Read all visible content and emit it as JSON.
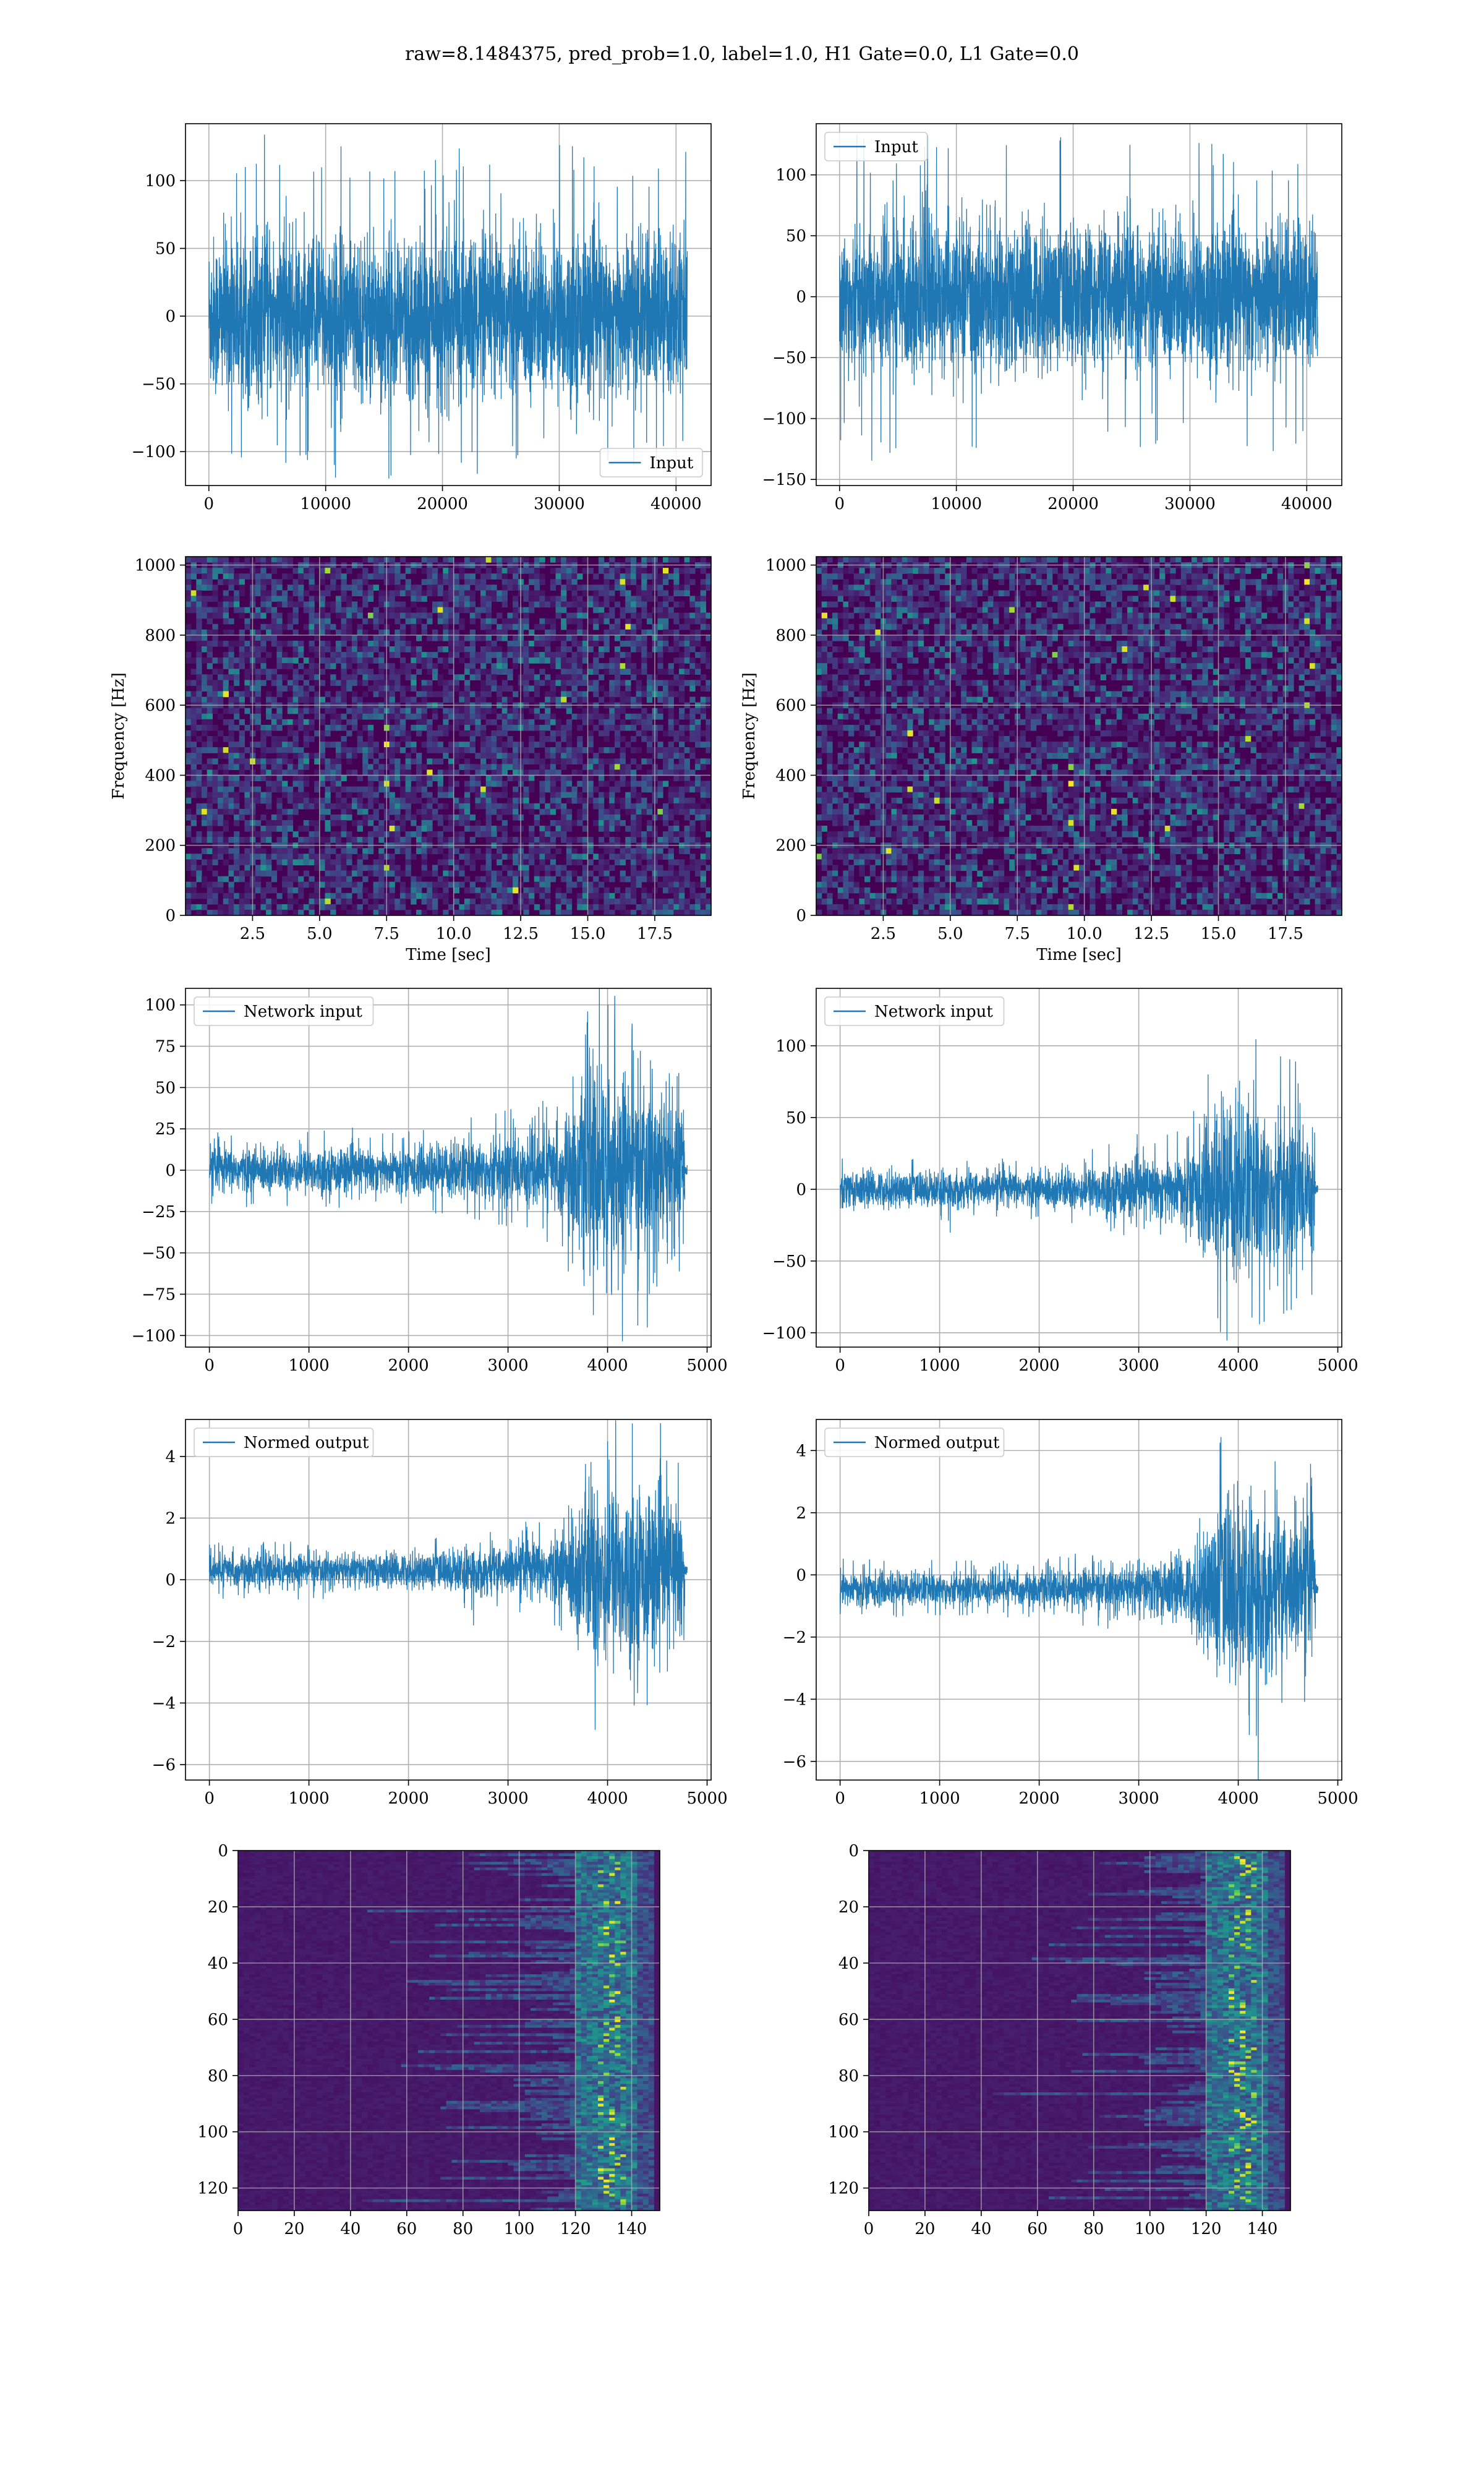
{
  "suptitle": "raw=8.1484375, pred_prob=1.0, label=1.0, H1 Gate=0.0, L1 Gate=0.0",
  "colors": {
    "line": "#1f77b4",
    "grid": "#b0b0b0",
    "viridis_dark": "#440154"
  },
  "chart_data": [
    {
      "id": "h1-input",
      "type": "line",
      "panel": "row1-left",
      "series": [
        {
          "name": "Input",
          "n_samples": 40960,
          "y_abs_max_typical": 85,
          "y_min": -120,
          "y_max": 135
        }
      ],
      "xlim": [
        -2000,
        43000
      ],
      "ylim": [
        -125,
        142
      ],
      "xticks": [
        0,
        10000,
        20000,
        30000,
        40000
      ],
      "xtick_labels": [
        "0",
        "10000",
        "20000",
        "30000",
        "40000"
      ],
      "yticks": [
        100,
        50,
        0,
        -50,
        -100
      ],
      "ytick_labels": [
        "100",
        "50",
        "0",
        "−50",
        "−100"
      ],
      "legend": [
        "Input"
      ],
      "legend_loc": "lower right",
      "grid": true,
      "xlabel": "",
      "ylabel": ""
    },
    {
      "id": "l1-input",
      "type": "line",
      "panel": "row1-right",
      "series": [
        {
          "name": "Input",
          "n_samples": 40960,
          "y_abs_max_typical": 85,
          "y_min": -138,
          "y_max": 135
        }
      ],
      "xlim": [
        -2000,
        43000
      ],
      "ylim": [
        -155,
        142
      ],
      "xticks": [
        0,
        10000,
        20000,
        30000,
        40000
      ],
      "xtick_labels": [
        "0",
        "10000",
        "20000",
        "30000",
        "40000"
      ],
      "yticks": [
        100,
        50,
        0,
        -50,
        -100,
        -150
      ],
      "ytick_labels": [
        "100",
        "50",
        "0",
        "−50",
        "−100",
        "−150"
      ],
      "legend": [
        "Input"
      ],
      "legend_loc": "upper left",
      "grid": true,
      "xlabel": "",
      "ylabel": ""
    },
    {
      "id": "h1-spectrogram",
      "type": "heatmap",
      "panel": "row2-left",
      "xlim": [
        0,
        19.6
      ],
      "ylim": [
        0,
        1024
      ],
      "colormap": "viridis",
      "xticks": [
        2.5,
        5.0,
        7.5,
        10.0,
        12.5,
        15.0,
        17.5
      ],
      "xtick_labels": [
        "2.5",
        "5.0",
        "7.5",
        "10.0",
        "12.5",
        "15.0",
        "17.5"
      ],
      "yticks": [
        1000,
        800,
        600,
        400,
        200,
        0
      ],
      "ytick_labels": [
        "1000",
        "800",
        "600",
        "400",
        "200",
        "0"
      ],
      "xlabel": "Time [sec]",
      "ylabel": "Frequency [Hz]",
      "grid": true
    },
    {
      "id": "l1-spectrogram",
      "type": "heatmap",
      "panel": "row2-right",
      "xlim": [
        0,
        19.6
      ],
      "ylim": [
        0,
        1024
      ],
      "colormap": "viridis",
      "xticks": [
        2.5,
        5.0,
        7.5,
        10.0,
        12.5,
        15.0,
        17.5
      ],
      "xtick_labels": [
        "2.5",
        "5.0",
        "7.5",
        "10.0",
        "12.5",
        "15.0",
        "17.5"
      ],
      "yticks": [
        1000,
        800,
        600,
        400,
        200,
        0
      ],
      "ytick_labels": [
        "1000",
        "800",
        "600",
        "400",
        "200",
        "0"
      ],
      "xlabel": "Time [sec]",
      "ylabel": "Frequency [Hz]",
      "grid": true
    },
    {
      "id": "h1-network-input",
      "type": "line",
      "panel": "row3-left",
      "series": [
        {
          "name": "Network input",
          "n_samples": 4800,
          "envelope_x": [
            0,
            2000,
            2400,
            3000,
            3500,
            3700,
            3900,
            4100,
            4500,
            4750,
            4800
          ],
          "envelope_y": [
            16,
            16,
            20,
            26,
            32,
            55,
            80,
            72,
            65,
            60,
            3
          ],
          "offset": 0
        }
      ],
      "xlim": [
        -240,
        5040
      ],
      "ylim": [
        -107,
        110
      ],
      "xticks": [
        0,
        1000,
        2000,
        3000,
        4000,
        5000
      ],
      "xtick_labels": [
        "0",
        "1000",
        "2000",
        "3000",
        "4000",
        "5000"
      ],
      "yticks": [
        100,
        75,
        50,
        25,
        0,
        -25,
        -50,
        -75,
        -100
      ],
      "ytick_labels": [
        "100",
        "75",
        "50",
        "25",
        "0",
        "−25",
        "−50",
        "−75",
        "−100"
      ],
      "legend": [
        "Network input"
      ],
      "legend_loc": "upper left",
      "grid": true
    },
    {
      "id": "l1-network-input",
      "type": "line",
      "panel": "row3-right",
      "series": [
        {
          "name": "Network input",
          "n_samples": 4800,
          "envelope_x": [
            0,
            2000,
            2400,
            3000,
            3500,
            3700,
            3900,
            4100,
            4500,
            4750,
            4800
          ],
          "envelope_y": [
            15,
            15,
            18,
            24,
            30,
            58,
            80,
            75,
            65,
            60,
            3
          ],
          "offset": 0
        }
      ],
      "xlim": [
        -240,
        5040
      ],
      "ylim": [
        -110,
        140
      ],
      "xticks": [
        0,
        1000,
        2000,
        3000,
        4000,
        5000
      ],
      "xtick_labels": [
        "0",
        "1000",
        "2000",
        "3000",
        "4000",
        "5000"
      ],
      "yticks": [
        100,
        50,
        0,
        -50,
        -100
      ],
      "ytick_labels": [
        "100",
        "50",
        "0",
        "−50",
        "−100"
      ],
      "legend": [
        "Network input"
      ],
      "legend_loc": "upper left",
      "grid": true
    },
    {
      "id": "h1-normed-output",
      "type": "line",
      "panel": "row4-left",
      "series": [
        {
          "name": "Normed output",
          "n_samples": 4800,
          "envelope_x": [
            0,
            2000,
            2400,
            3000,
            3500,
            3700,
            3900,
            4100,
            4500,
            4750,
            4800
          ],
          "envelope_y": [
            0.65,
            0.65,
            0.8,
            1.0,
            1.3,
            2.6,
            4.0,
            3.3,
            3.0,
            2.8,
            0.15
          ],
          "offset": 0.3
        }
      ],
      "xlim": [
        -240,
        5040
      ],
      "ylim": [
        -6.5,
        5.2
      ],
      "xticks": [
        0,
        1000,
        2000,
        3000,
        4000,
        5000
      ],
      "xtick_labels": [
        "0",
        "1000",
        "2000",
        "3000",
        "4000",
        "5000"
      ],
      "yticks": [
        4,
        2,
        0,
        -2,
        -4,
        -6
      ],
      "ytick_labels": [
        "4",
        "2",
        "0",
        "−2",
        "−4",
        "−6"
      ],
      "legend": [
        "Normed output"
      ],
      "legend_loc": "upper left",
      "grid": true
    },
    {
      "id": "l1-normed-output",
      "type": "line",
      "panel": "row4-right",
      "series": [
        {
          "name": "Normed output",
          "n_samples": 4800,
          "envelope_x": [
            0,
            2000,
            2400,
            3000,
            3500,
            3700,
            3900,
            4100,
            4500,
            4750,
            4800
          ],
          "envelope_y": [
            0.65,
            0.65,
            0.8,
            1.0,
            1.3,
            2.6,
            4.0,
            3.3,
            3.0,
            2.8,
            0.15
          ],
          "offset": -0.45
        }
      ],
      "xlim": [
        -240,
        5040
      ],
      "ylim": [
        -6.6,
        5.0
      ],
      "xticks": [
        0,
        1000,
        2000,
        3000,
        4000,
        5000
      ],
      "xtick_labels": [
        "0",
        "1000",
        "2000",
        "3000",
        "4000",
        "5000"
      ],
      "yticks": [
        4,
        2,
        0,
        -2,
        -4,
        -6
      ],
      "ytick_labels": [
        "4",
        "2",
        "0",
        "−2",
        "−4",
        "−6"
      ],
      "legend": [
        "Normed output"
      ],
      "legend_loc": "upper left",
      "grid": true
    },
    {
      "id": "h1-feature-map",
      "type": "heatmap",
      "panel": "row5-left",
      "xlim": [
        0,
        150
      ],
      "ylim": [
        128,
        0
      ],
      "colormap": "viridis",
      "xticks": [
        0,
        20,
        40,
        60,
        80,
        100,
        120,
        140
      ],
      "xtick_labels": [
        "0",
        "20",
        "40",
        "60",
        "80",
        "100",
        "120",
        "140"
      ],
      "yticks": [
        0,
        20,
        40,
        60,
        80,
        100,
        120
      ],
      "ytick_labels": [
        "0",
        "20",
        "40",
        "60",
        "80",
        "100",
        "120"
      ],
      "grid": true
    },
    {
      "id": "l1-feature-map",
      "type": "heatmap",
      "panel": "row5-right",
      "xlim": [
        0,
        150
      ],
      "ylim": [
        128,
        0
      ],
      "colormap": "viridis",
      "xticks": [
        0,
        20,
        40,
        60,
        80,
        100,
        120,
        140
      ],
      "xtick_labels": [
        "0",
        "20",
        "40",
        "60",
        "80",
        "100",
        "120",
        "140"
      ],
      "yticks": [
        0,
        20,
        40,
        60,
        80,
        100,
        120
      ],
      "ytick_labels": [
        "0",
        "20",
        "40",
        "60",
        "80",
        "100",
        "120"
      ],
      "grid": true
    }
  ]
}
